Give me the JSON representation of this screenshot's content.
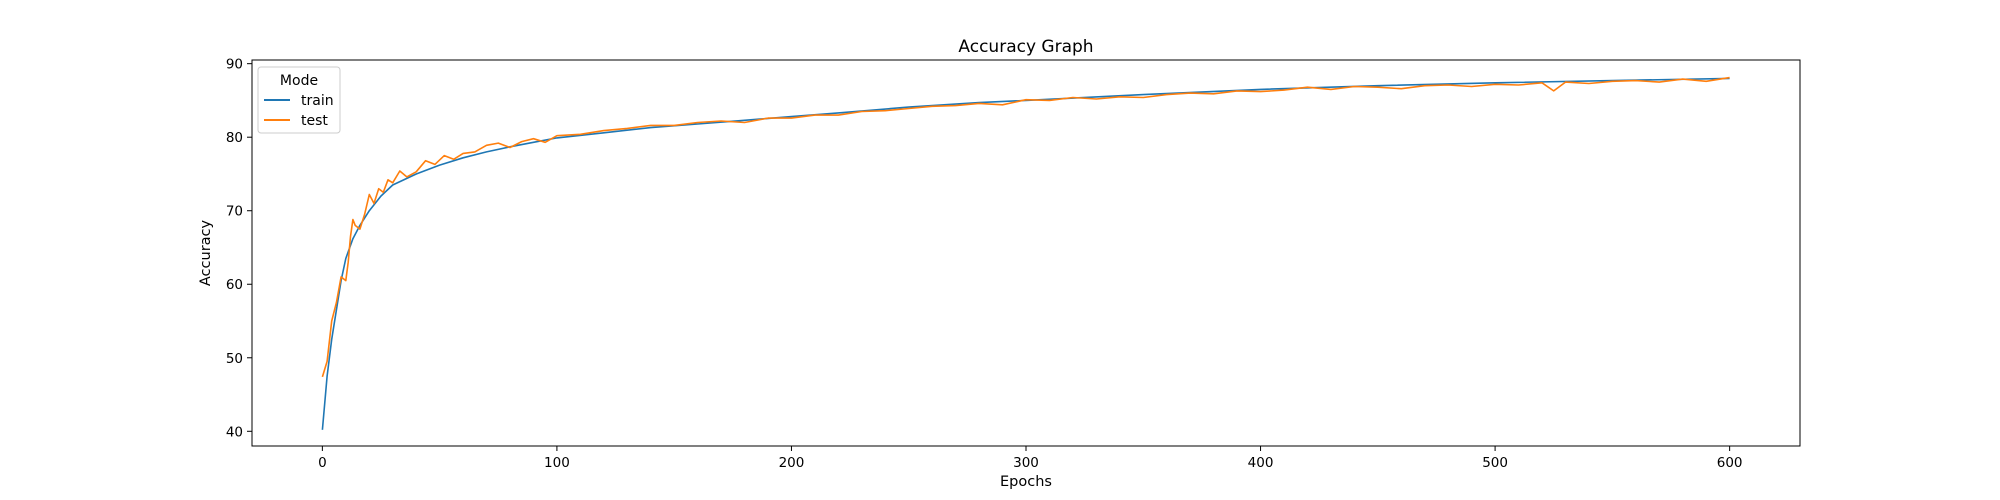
{
  "chart_data": {
    "type": "line",
    "title": "Accuracy Graph",
    "xlabel": "Epochs",
    "ylabel": "Accuracy",
    "xlim": [
      -30,
      630
    ],
    "ylim": [
      38,
      90.5
    ],
    "xticks": [
      0,
      100,
      200,
      300,
      400,
      500,
      600
    ],
    "yticks": [
      40,
      50,
      60,
      70,
      80,
      90
    ],
    "grid": false,
    "legend": {
      "title": "Mode",
      "placement": "top-left"
    },
    "series": [
      {
        "name": "train",
        "color": "#1f77b4",
        "x": [
          0,
          2,
          4,
          6,
          8,
          10,
          13,
          16,
          20,
          25,
          30,
          40,
          50,
          60,
          70,
          80,
          90,
          100,
          120,
          140,
          160,
          180,
          200,
          220,
          250,
          280,
          300,
          350,
          400,
          450,
          500,
          550,
          600
        ],
        "y": [
          40.2,
          47.5,
          52.5,
          56.5,
          60.5,
          63.5,
          66.2,
          68.0,
          70.0,
          72.0,
          73.5,
          75.0,
          76.2,
          77.2,
          78.0,
          78.7,
          79.3,
          79.9,
          80.6,
          81.3,
          81.8,
          82.3,
          82.8,
          83.3,
          84.1,
          84.7,
          85.0,
          85.8,
          86.5,
          87.0,
          87.4,
          87.7,
          88.0
        ]
      },
      {
        "name": "test",
        "color": "#ff7f0e",
        "x": [
          0,
          2,
          4,
          6,
          8,
          10,
          11,
          12,
          13,
          14,
          16,
          18,
          20,
          22,
          24,
          26,
          28,
          30,
          33,
          36,
          40,
          44,
          48,
          52,
          56,
          60,
          65,
          70,
          75,
          80,
          85,
          90,
          95,
          100,
          110,
          120,
          130,
          140,
          150,
          160,
          170,
          180,
          190,
          200,
          210,
          220,
          230,
          240,
          250,
          260,
          270,
          280,
          290,
          300,
          310,
          320,
          330,
          340,
          350,
          360,
          370,
          380,
          390,
          400,
          410,
          420,
          430,
          440,
          450,
          460,
          470,
          480,
          490,
          500,
          510,
          520,
          525,
          530,
          540,
          550,
          560,
          570,
          580,
          590,
          600
        ],
        "y": [
          47.4,
          49.5,
          55.0,
          57.5,
          61.0,
          60.5,
          63.0,
          66.5,
          68.8,
          68.0,
          67.5,
          69.5,
          72.2,
          71.0,
          73.0,
          72.5,
          74.2,
          73.8,
          75.4,
          74.6,
          75.3,
          76.8,
          76.3,
          77.5,
          77.0,
          77.8,
          78.0,
          78.9,
          79.2,
          78.6,
          79.4,
          79.8,
          79.3,
          80.2,
          80.4,
          80.9,
          81.2,
          81.6,
          81.6,
          82.0,
          82.2,
          82.0,
          82.6,
          82.6,
          83.0,
          83.0,
          83.5,
          83.6,
          83.9,
          84.2,
          84.3,
          84.6,
          84.4,
          85.1,
          85.0,
          85.4,
          85.2,
          85.5,
          85.4,
          85.8,
          86.0,
          85.9,
          86.3,
          86.2,
          86.4,
          86.8,
          86.5,
          86.9,
          86.8,
          86.6,
          87.0,
          87.1,
          86.9,
          87.2,
          87.1,
          87.4,
          86.3,
          87.5,
          87.3,
          87.6,
          87.7,
          87.5,
          87.9,
          87.6,
          88.1
        ]
      }
    ]
  }
}
